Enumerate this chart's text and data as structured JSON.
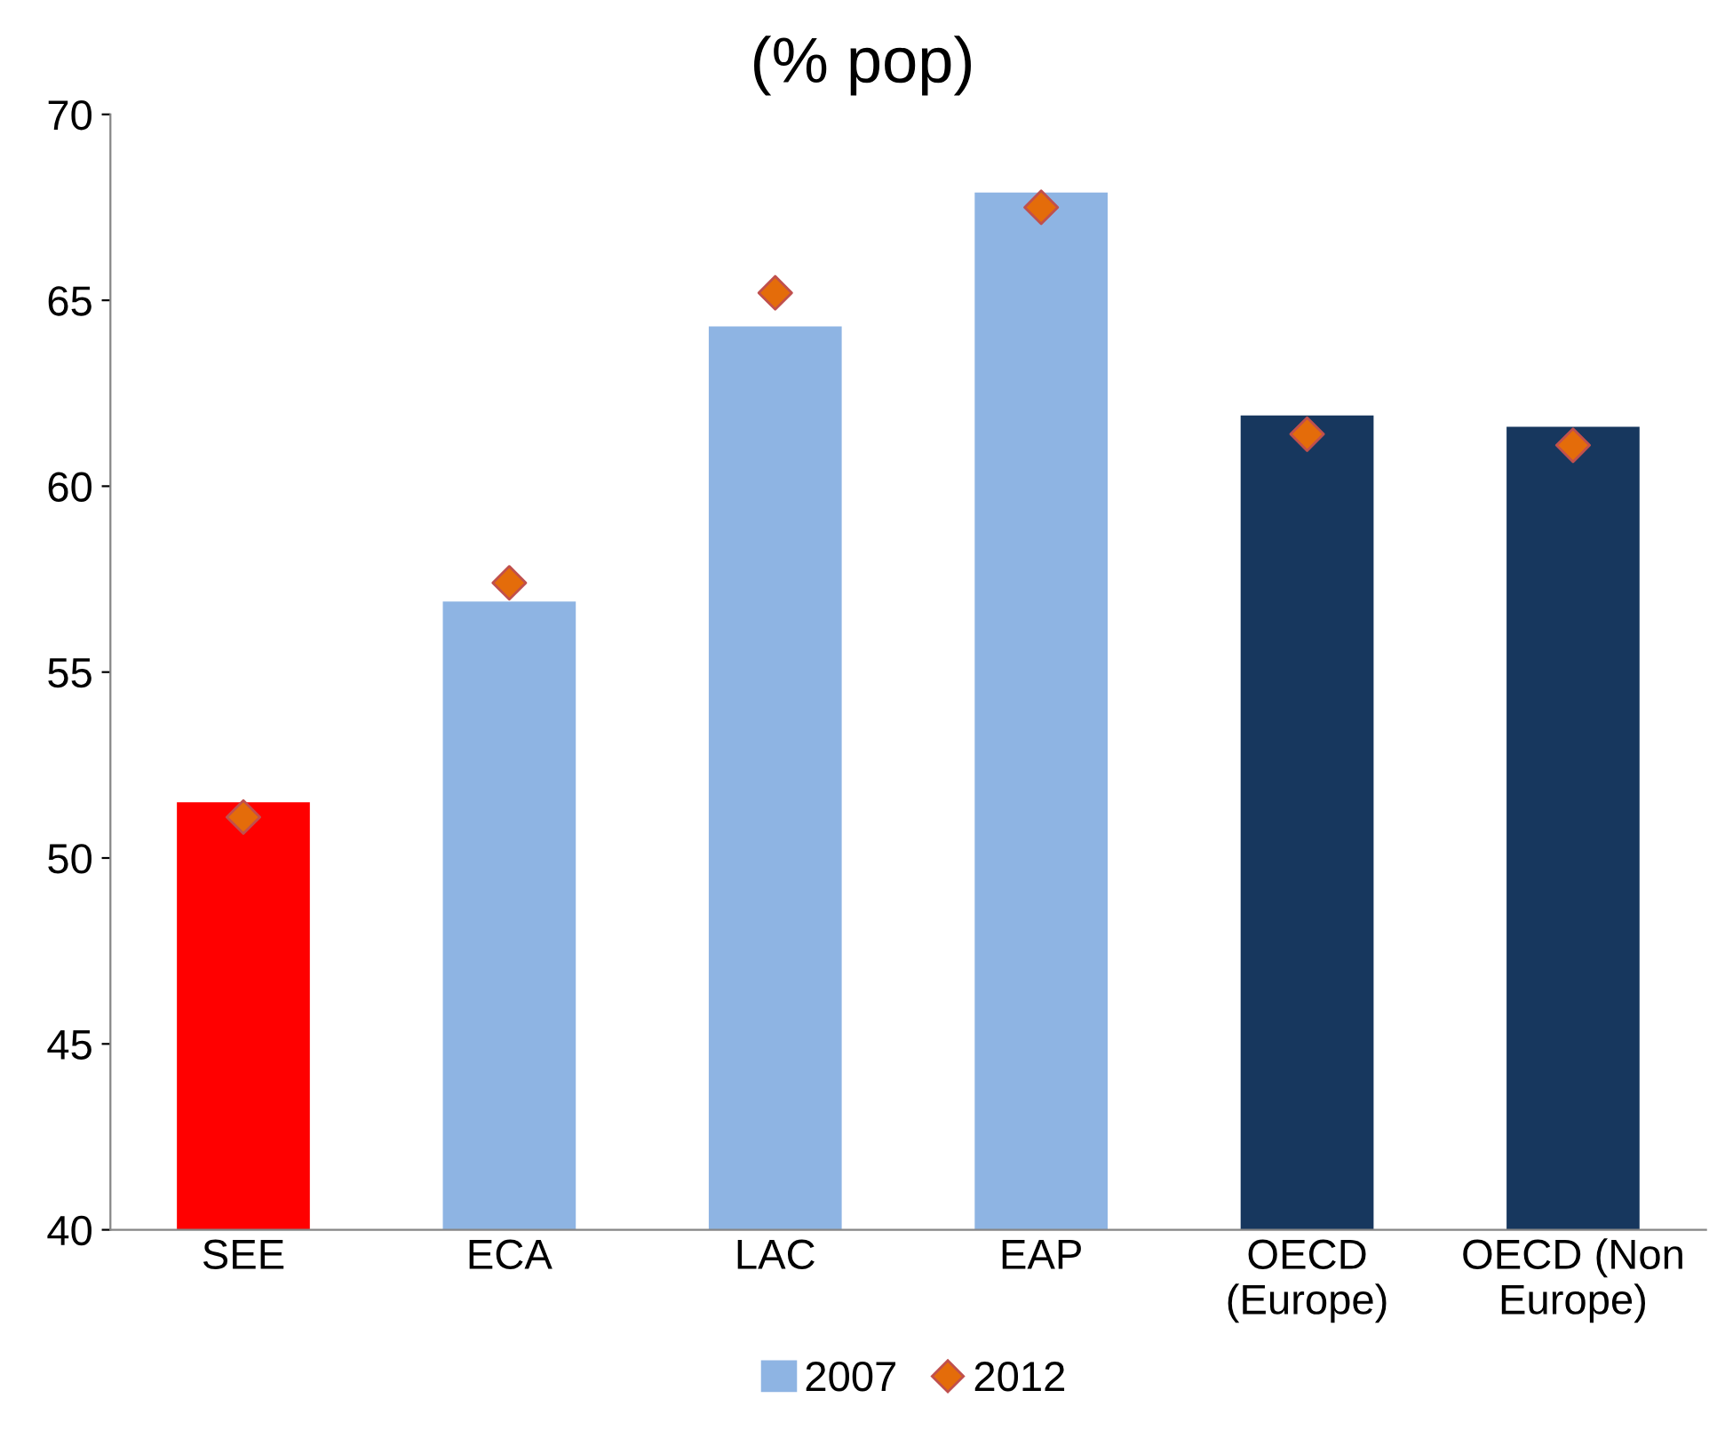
{
  "chart_data": {
    "type": "bar",
    "title": "(% pop)",
    "categories": [
      "SEE",
      "ECA",
      "LAC",
      "EAP",
      "OECD\n(Europe)",
      "OECD (Non\nEurope)"
    ],
    "series": [
      {
        "name": "2007",
        "color": "#8eb4e3",
        "colors": [
          "#ff0000",
          "#8eb4e3",
          "#8eb4e3",
          "#8eb4e3",
          "#17375e",
          "#17375e"
        ],
        "values": [
          51.5,
          56.9,
          64.3,
          67.9,
          61.9,
          61.6
        ]
      },
      {
        "name": "2012",
        "type": "scatter",
        "color": "#e46c0a",
        "marker": "diamond",
        "values": [
          51.1,
          57.4,
          65.2,
          67.5,
          61.4,
          61.1
        ]
      }
    ],
    "ylim": [
      40,
      70
    ],
    "yticks": [
      40,
      45,
      50,
      55,
      60,
      65,
      70
    ],
    "grid": false,
    "legend": "bottom"
  }
}
